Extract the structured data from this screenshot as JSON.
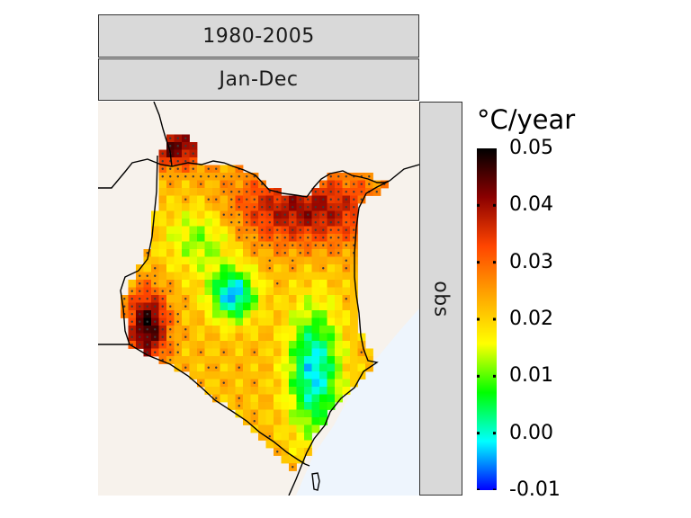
{
  "panel": {
    "strip_top": "1980-2005",
    "strip_middle": "Jan-Dec",
    "strip_side": "obs"
  },
  "legend": {
    "title": "°C/year",
    "min": -0.01,
    "max": 0.05,
    "ticks": [
      {
        "value": 0.05,
        "label": "0.05"
      },
      {
        "value": 0.04,
        "label": "0.04"
      },
      {
        "value": 0.03,
        "label": "0.03"
      },
      {
        "value": 0.02,
        "label": "0.02"
      },
      {
        "value": 0.01,
        "label": "0.01"
      },
      {
        "value": 0.0,
        "label": "0.00"
      },
      {
        "value": -0.01,
        "label": "-0.01"
      }
    ],
    "colors": [
      "#0000ff",
      "#00ffff",
      "#00ff00",
      "#ffff00",
      "#ffa500",
      "#ff4500",
      "#8b0000",
      "#000000"
    ]
  },
  "map": {
    "land_color": "#f7f2ec",
    "sea_color": "#eef5fd",
    "stipple_color": "#3a3a3a"
  }
}
